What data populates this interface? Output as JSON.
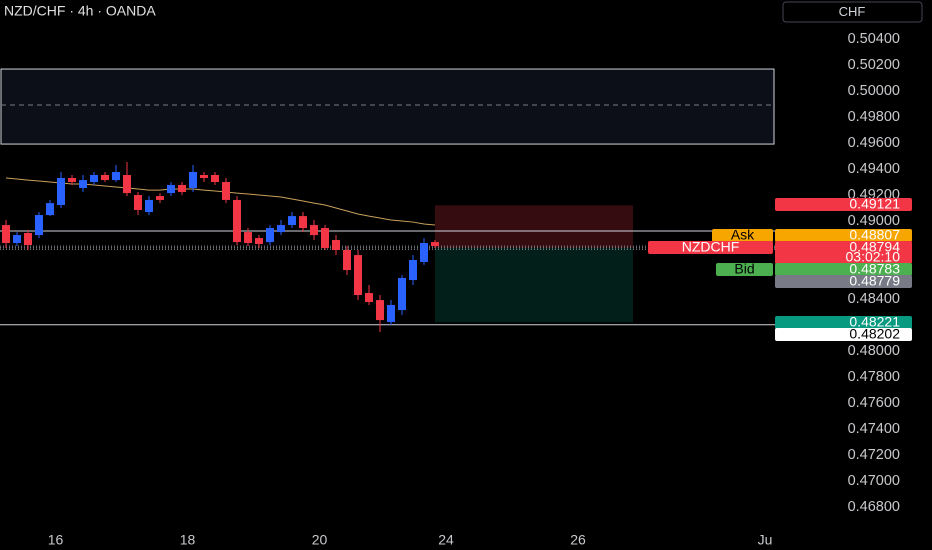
{
  "header": {
    "symbol_title": "NZD/CHF · 4h · OANDA",
    "currency_button": "CHF"
  },
  "chart_data": {
    "type": "candlestick",
    "up_color": "#2962ff",
    "down_color": "#f23645",
    "open": [
      0.48969,
      0.48831,
      0.48908,
      0.48892,
      0.49046,
      0.49123,
      0.49331,
      0.49254,
      0.493,
      0.49354,
      0.49315,
      0.49354,
      0.492,
      0.49069,
      0.49192,
      0.49215,
      0.49277,
      0.49254,
      0.49354,
      0.49354,
      0.493,
      0.49162,
      0.48915,
      0.48869,
      0.48838,
      0.48915,
      0.48969,
      0.49038,
      0.48969,
      0.48946,
      0.48854,
      0.48777,
      0.48738,
      0.48446,
      0.48392,
      0.48223,
      0.48315,
      0.48546,
      0.48685,
      0.48838
    ],
    "high": [
      0.49008,
      0.48915,
      0.48931,
      0.49069,
      0.49162,
      0.49377,
      0.49354,
      0.49354,
      0.49377,
      0.49377,
      0.49431,
      0.49454,
      0.49223,
      0.49192,
      0.49215,
      0.493,
      0.493,
      0.49431,
      0.49377,
      0.49377,
      0.49331,
      0.49192,
      0.48946,
      0.48892,
      0.48969,
      0.49008,
      0.49069,
      0.49069,
      0.49008,
      0.48969,
      0.48892,
      0.48808,
      0.48777,
      0.48508,
      0.48431,
      0.48392,
      0.48585,
      0.48738,
      0.48869,
      0.48854
    ],
    "low": [
      0.48792,
      0.48808,
      0.48777,
      0.48869,
      0.49038,
      0.491,
      0.49277,
      0.49223,
      0.49277,
      0.493,
      0.493,
      0.49192,
      0.49046,
      0.49046,
      0.49138,
      0.49192,
      0.492,
      0.49223,
      0.493,
      0.49277,
      0.49138,
      0.48815,
      0.48808,
      0.48792,
      0.48815,
      0.48892,
      0.48946,
      0.48915,
      0.48854,
      0.48777,
      0.48738,
      0.48585,
      0.48392,
      0.48354,
      0.48146,
      0.482,
      0.48277,
      0.48508,
      0.48662,
      0.48792
    ],
    "close": [
      0.48831,
      0.48892,
      0.48815,
      0.49046,
      0.49138,
      0.49331,
      0.493,
      0.49315,
      0.49354,
      0.49315,
      0.49377,
      0.49215,
      0.49085,
      0.49162,
      0.49162,
      0.49277,
      0.49223,
      0.49377,
      0.49331,
      0.493,
      0.49162,
      0.48838,
      0.48831,
      0.48823,
      0.48946,
      0.48969,
      0.49038,
      0.48946,
      0.48892,
      0.48792,
      0.48777,
      0.48623,
      0.48431,
      0.48377,
      0.48238,
      0.48354,
      0.48562,
      0.487,
      0.48831,
      0.48808
    ],
    "moving_average": {
      "color": "#c9a15a",
      "values": [
        0.49331,
        0.49323,
        0.49315,
        0.49308,
        0.493,
        0.49292,
        0.49285,
        0.49285,
        0.49277,
        0.49269,
        0.49262,
        0.49254,
        0.49246,
        0.49238,
        0.49238,
        0.49246,
        0.49246,
        0.49246,
        0.49238,
        0.49231,
        0.49223,
        0.49215,
        0.49208,
        0.492,
        0.49192,
        0.49185,
        0.49169,
        0.49154,
        0.49138,
        0.49123,
        0.491,
        0.49077,
        0.49054,
        0.49038,
        0.49023,
        0.49008,
        0.49,
        0.48992,
        0.48977,
        0.48969
      ]
    },
    "xlim": [
      -0.545,
      69.91
    ],
    "xticks": [
      {
        "value": 4.5,
        "label": "16"
      },
      {
        "value": 16.5,
        "label": "18"
      },
      {
        "value": 28.5,
        "label": "20"
      },
      {
        "value": 40,
        "label": "24"
      },
      {
        "value": 52,
        "label": "26"
      },
      {
        "value": 69,
        "label": "Ju"
      }
    ],
    "ylim": [
      0.46585,
      0.507
    ],
    "yticks": [
      {
        "value": 0.504,
        "label": "0.50400"
      },
      {
        "value": 0.502,
        "label": "0.50200"
      },
      {
        "value": 0.5,
        "label": "0.50000"
      },
      {
        "value": 0.498,
        "label": "0.49800"
      },
      {
        "value": 0.496,
        "label": "0.49600"
      },
      {
        "value": 0.494,
        "label": "0.49400"
      },
      {
        "value": 0.492,
        "label": "0.49200"
      },
      {
        "value": 0.49,
        "label": "0.49000"
      },
      {
        "value": 0.484,
        "label": "0.48400"
      },
      {
        "value": 0.48,
        "label": "0.48000"
      },
      {
        "value": 0.478,
        "label": "0.47800"
      },
      {
        "value": 0.476,
        "label": "0.47600"
      },
      {
        "value": 0.474,
        "label": "0.47400"
      },
      {
        "value": 0.472,
        "label": "0.47200"
      },
      {
        "value": 0.47,
        "label": "0.47000"
      },
      {
        "value": 0.468,
        "label": "0.46800"
      }
    ],
    "zone": {
      "top": 0.50169,
      "bottom": 0.49592,
      "mid": 0.49892
    },
    "levels": [
      0.48923,
      0.48202
    ],
    "position": {
      "start": 39,
      "end": 57,
      "entry": 0.48794,
      "stop": 0.49121,
      "target": 0.48221
    },
    "price_labels": [
      {
        "value": 0.49121,
        "color": "#f23645"
      },
      {
        "name": "Ask",
        "value": 0.48807,
        "color": "#f7a600"
      },
      {
        "name": "NZDCHF",
        "value": 0.48794,
        "color": "#f23645"
      },
      {
        "name": "Bid",
        "value": 0.48783,
        "color": "#4caf50"
      },
      {
        "value": 0.48779,
        "color": "#787b86"
      },
      {
        "value": 0.48221,
        "color": "#089981"
      },
      {
        "value": 0.48202,
        "color": "#ffffff"
      }
    ],
    "countdown": "03:02:10"
  }
}
